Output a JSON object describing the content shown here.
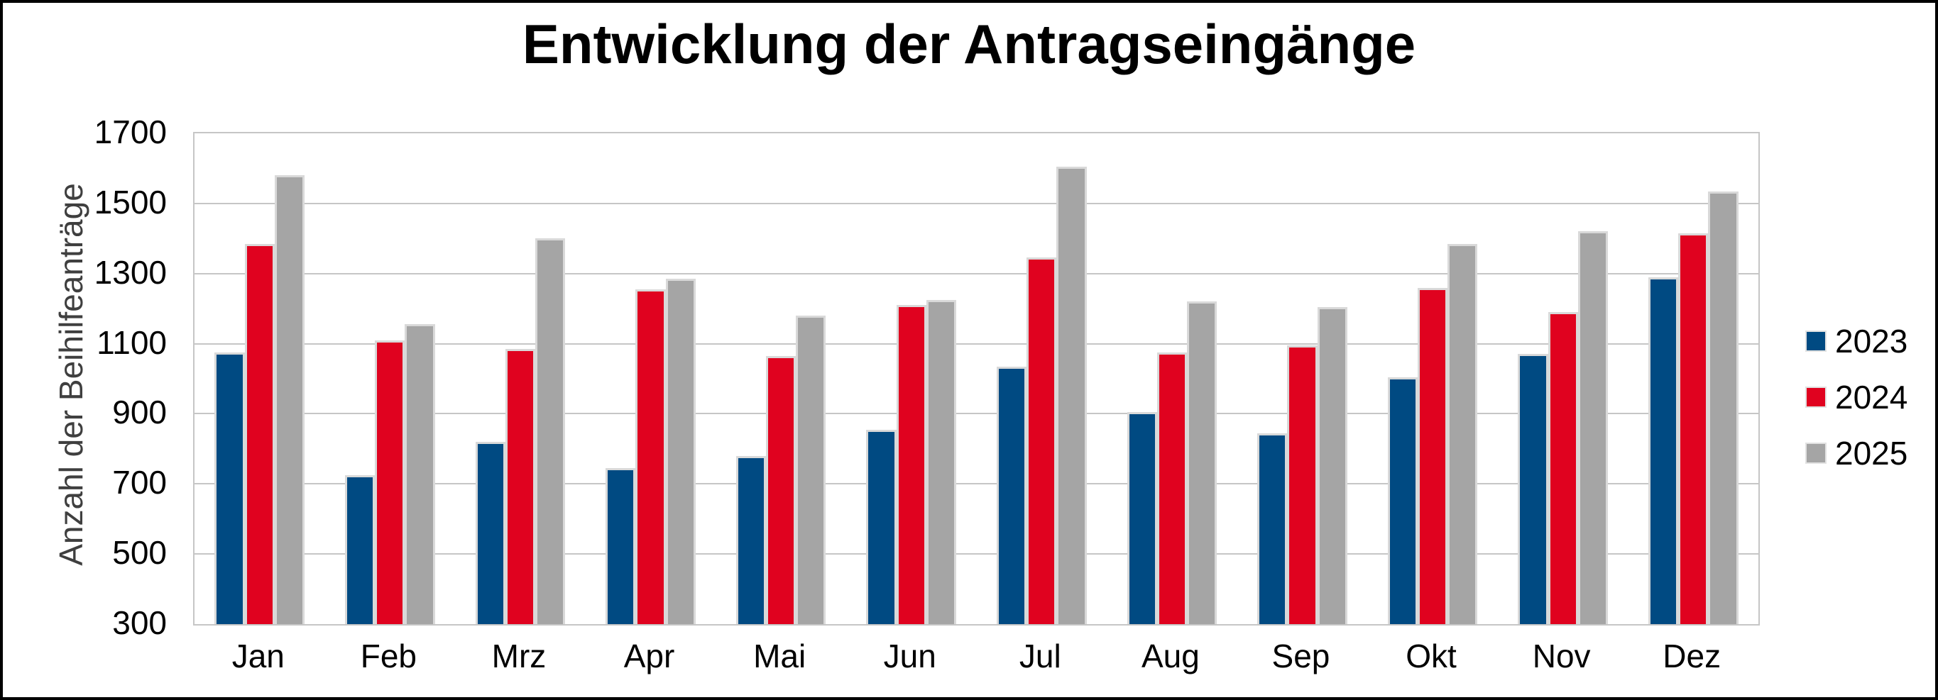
{
  "chart_data": {
    "type": "bar",
    "title": "Entwicklung der Antragseingänge",
    "xlabel": "",
    "ylabel": "Anzahl der Beihilfeanträge",
    "ylim": [
      300,
      1700
    ],
    "yticks": [
      300,
      500,
      700,
      900,
      1100,
      1300,
      1500,
      1700
    ],
    "grid": true,
    "grid_color": "#C6C6C6",
    "bar_outline_color": "#D9D9D9",
    "background_color": "#FFFFFF",
    "border_color": "#000000",
    "legend_position": "right",
    "categories": [
      "Jan",
      "Feb",
      "Mrz",
      "Apr",
      "Mai",
      "Jun",
      "Jul",
      "Aug",
      "Sep",
      "Okt",
      "Nov",
      "Dez"
    ],
    "series": [
      {
        "name": "2023",
        "color": "#004A82",
        "values": [
          1075,
          725,
          820,
          745,
          780,
          855,
          1035,
          905,
          845,
          1005,
          1070,
          1290
        ]
      },
      {
        "name": "2024",
        "color": "#E0021F",
        "values": [
          1385,
          1110,
          1085,
          1255,
          1065,
          1210,
          1345,
          1075,
          1095,
          1260,
          1190,
          1415
        ]
      },
      {
        "name": "2025",
        "color": "#A5A5A5",
        "values": [
          1580,
          1155,
          1400,
          1285,
          1180,
          1225,
          1605,
          1220,
          1205,
          1385,
          1420,
          1535
        ]
      }
    ]
  }
}
